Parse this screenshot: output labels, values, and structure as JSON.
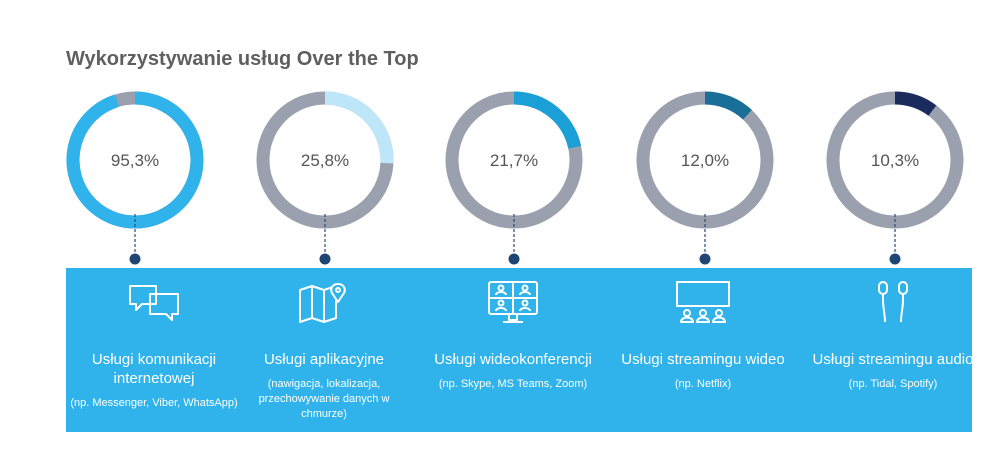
{
  "header": {
    "title": "Wykorzystywanie usług Over the Top"
  },
  "chart_data": {
    "type": "donut",
    "series": [
      {
        "label": "95,3%",
        "value": 95.3,
        "color": "#2fb3ea"
      },
      {
        "label": "25,8%",
        "value": 25.8,
        "color": "#bde6f8"
      },
      {
        "label": "21,7%",
        "value": 21.7,
        "color": "#1a9fd6"
      },
      {
        "label": "12,0%",
        "value": 12.0,
        "color": "#1a6f98"
      },
      {
        "label": "10,3%",
        "value": 10.3,
        "color": "#1b2c5c"
      }
    ],
    "remainder_color": "#9aa0ad"
  },
  "services": [
    {
      "icon": "chat-bubbles-icon",
      "name": "Usługi komunikacji internetowej",
      "desc": "(np. Messenger, Viber, WhatsApp)"
    },
    {
      "icon": "map-pin-icon",
      "name": "Usługi aplikacyjne",
      "desc": "(nawigacja, lokalizacja, przechowywanie danych w chmurze)"
    },
    {
      "icon": "video-conference-icon",
      "name": "Usługi wideokonferencji",
      "desc": "(np. Skype, MS Teams, Zoom)"
    },
    {
      "icon": "cinema-screen-icon",
      "name": "Usługi streamingu wideo",
      "desc": "(np. Netflix)"
    },
    {
      "icon": "earphones-icon",
      "name": "Usługi streamingu audio",
      "desc": "(np. Tidal, Spotify)"
    }
  ]
}
